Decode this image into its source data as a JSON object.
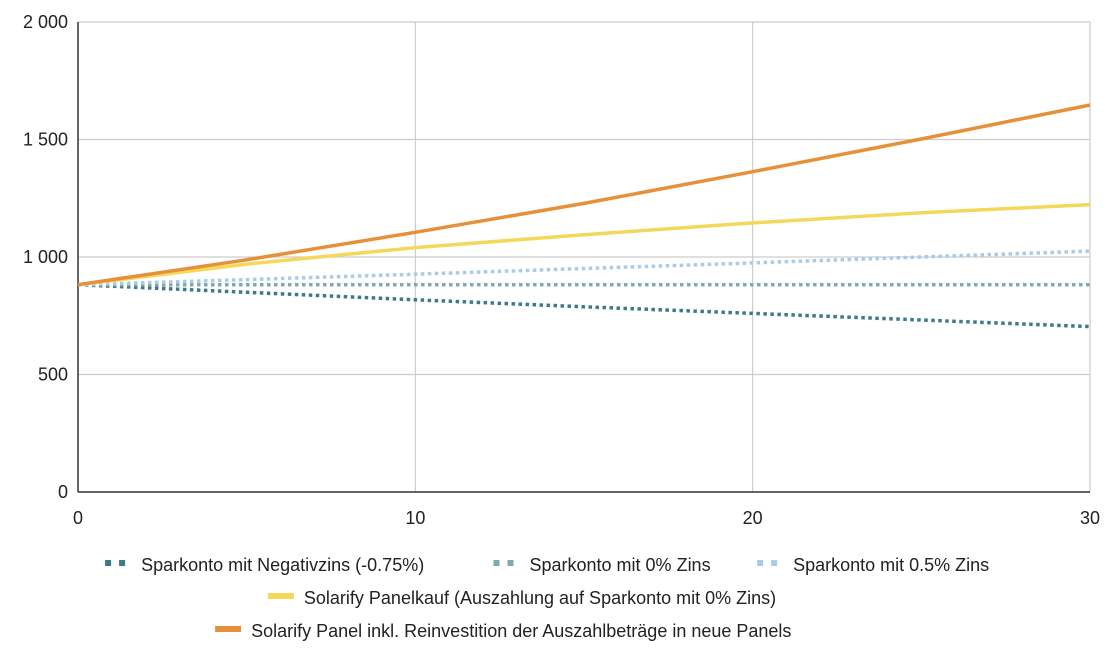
{
  "chart_data": {
    "type": "line",
    "title": "",
    "xlabel": "",
    "ylabel": "",
    "xlim": [
      0,
      30
    ],
    "ylim": [
      0,
      2000
    ],
    "x_ticks": [
      0,
      10,
      20,
      30
    ],
    "x_tick_labels": [
      "0",
      "10",
      "20",
      "30"
    ],
    "y_ticks": [
      0,
      500,
      1000,
      1500,
      2000
    ],
    "y_tick_labels": [
      "0",
      "500",
      "1 000",
      "1 500",
      "2 000"
    ],
    "grid": true,
    "legend_position": "bottom",
    "series": [
      {
        "name": "Sparkonto mit Negativzins (-0.75%)",
        "color": "#3d7a87",
        "style": "dotted",
        "x": [
          0,
          5,
          10,
          15,
          20,
          25,
          30
        ],
        "y": [
          882,
          850,
          818,
          788,
          760,
          732,
          704
        ]
      },
      {
        "name": "Sparkonto mit 0% Zins",
        "color": "#7fa9ae",
        "style": "dotted",
        "x": [
          0,
          5,
          10,
          15,
          20,
          25,
          30
        ],
        "y": [
          882,
          882,
          882,
          882,
          882,
          882,
          882
        ]
      },
      {
        "name": "Sparkonto mit 0.5% Zins",
        "color": "#a9cbe8",
        "style": "dotted",
        "x": [
          0,
          5,
          10,
          15,
          20,
          25,
          30
        ],
        "y": [
          882,
          904,
          927,
          951,
          975,
          1000,
          1025
        ]
      },
      {
        "name": "Solarify Panelkauf (Auszahlung auf Sparkonto mit 0% Zins)",
        "color": "#f5d85a",
        "style": "solid",
        "x": [
          0,
          5,
          10,
          15,
          20,
          25,
          30
        ],
        "y": [
          882,
          970,
          1040,
          1095,
          1145,
          1188,
          1223
        ]
      },
      {
        "name": "Solarify Panel inkl. Reinvestition der Auszahlbeträge in neue Panels",
        "color": "#e6913a",
        "style": "solid",
        "x": [
          0,
          5,
          10,
          15,
          20,
          25,
          30
        ],
        "y": [
          882,
          988,
          1105,
          1228,
          1363,
          1502,
          1647
        ]
      }
    ]
  }
}
